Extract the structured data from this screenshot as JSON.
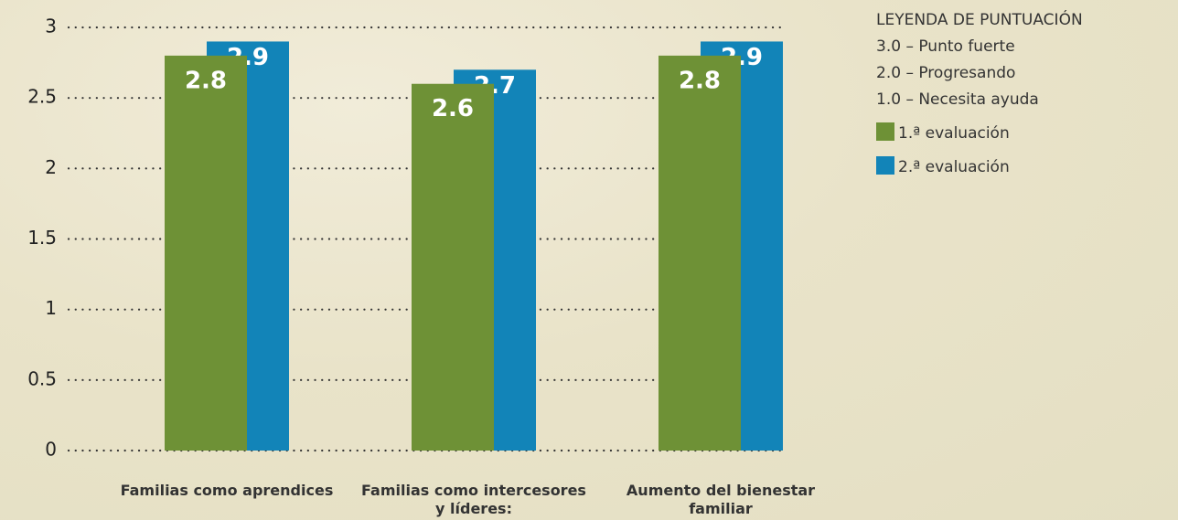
{
  "chart_data": {
    "type": "bar",
    "categories": [
      "Familias como aprendices",
      "Familias como intercesores y líderes:",
      "Aumento del bienestar familiar"
    ],
    "series": [
      {
        "name": "1.ª evaluación",
        "color": "#6e9136",
        "values": [
          2.8,
          2.6,
          2.8
        ]
      },
      {
        "name": "2.ª evaluación",
        "color": "#1284b8",
        "values": [
          2.9,
          2.7,
          2.9
        ]
      }
    ],
    "ylim": [
      0,
      3
    ],
    "yticks": [
      0,
      0.5,
      1,
      1.5,
      2,
      2.5,
      3
    ],
    "grid": true,
    "legend_title": "LEYENDA DE PUNTUACIÓN",
    "score_key": [
      "3.0 – Punto fuerte",
      "2.0 – Progresando",
      "1.0 – Necesita ayuda"
    ]
  }
}
